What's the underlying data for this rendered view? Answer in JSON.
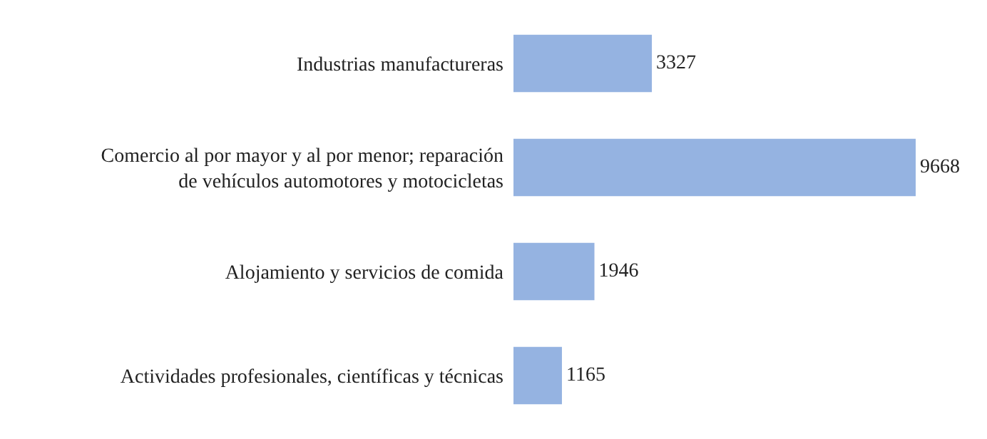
{
  "chart_data": {
    "type": "bar",
    "orientation": "horizontal",
    "data_labels": true,
    "legend": false,
    "categories": [
      "Industrias manufactureras",
      "Comercio al por mayor y al por menor; reparación\nde vehículos automotores y motocicletas",
      "Alojamiento y servicios de comida",
      "Actividades profesionales, científicas y técnicas"
    ],
    "values": [
      3327,
      9668,
      1946,
      1165
    ],
    "color": "#95b3e1"
  }
}
